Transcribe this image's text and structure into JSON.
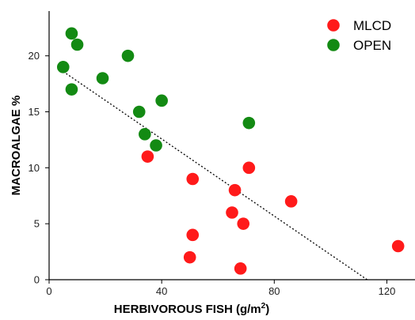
{
  "chart_data": {
    "type": "scatter",
    "xlabel": "HERBIVOROUS FISH (g/m",
    "xlabel_superscript": "2",
    "xlabel_suffix": ")",
    "ylabel": "MACROALGAE %",
    "xlim": [
      0,
      130
    ],
    "ylim": [
      0,
      24
    ],
    "xticks": [
      0,
      40,
      80,
      120
    ],
    "yticks": [
      0,
      5,
      10,
      15,
      20
    ],
    "grid": false,
    "legend_position": "top-right",
    "series": [
      {
        "name": "MLCD",
        "color": "#ff1a1a",
        "points": [
          {
            "x": 35,
            "y": 11
          },
          {
            "x": 51,
            "y": 9
          },
          {
            "x": 51,
            "y": 4
          },
          {
            "x": 50,
            "y": 2
          },
          {
            "x": 66,
            "y": 8
          },
          {
            "x": 65,
            "y": 6
          },
          {
            "x": 71,
            "y": 10
          },
          {
            "x": 69,
            "y": 5
          },
          {
            "x": 68,
            "y": 1
          },
          {
            "x": 86,
            "y": 7
          },
          {
            "x": 124,
            "y": 3
          }
        ]
      },
      {
        "name": "OPEN",
        "color": "#138a13",
        "points": [
          {
            "x": 5,
            "y": 19
          },
          {
            "x": 8,
            "y": 22
          },
          {
            "x": 10,
            "y": 21
          },
          {
            "x": 8,
            "y": 17
          },
          {
            "x": 19,
            "y": 18
          },
          {
            "x": 28,
            "y": 20
          },
          {
            "x": 32,
            "y": 15
          },
          {
            "x": 34,
            "y": 13
          },
          {
            "x": 40,
            "y": 16
          },
          {
            "x": 38,
            "y": 12
          },
          {
            "x": 71,
            "y": 14
          }
        ]
      }
    ],
    "trendline": {
      "style": "dotted",
      "color": "#000000",
      "start": {
        "x": 5,
        "y": 18.6
      },
      "end": {
        "x": 113,
        "y": 0
      }
    }
  }
}
